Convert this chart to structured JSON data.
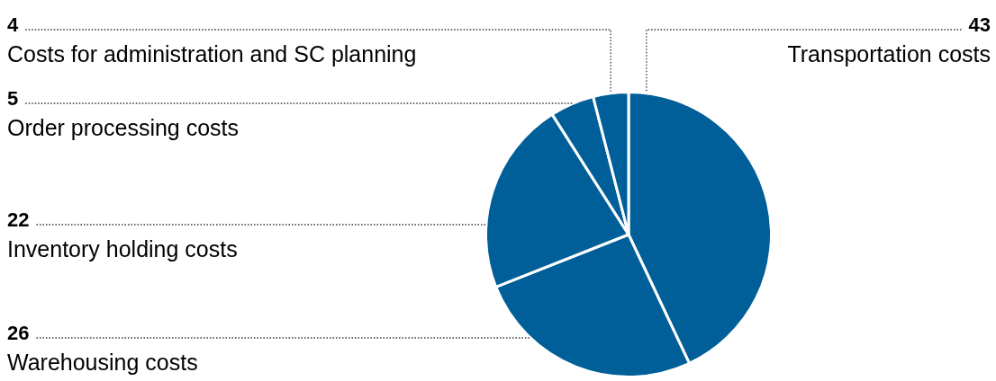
{
  "chart_data": {
    "type": "pie",
    "categories": [
      "Transportation costs",
      "Warehousing costs",
      "Inventory holding costs",
      "Order processing costs",
      "Costs for administration and SC planning"
    ],
    "values": [
      43,
      26,
      22,
      5,
      4
    ],
    "colors": [
      "#005f99",
      "#005f99",
      "#005f99",
      "#005f99",
      "#005f99"
    ],
    "data_labels": true,
    "legend": false
  }
}
